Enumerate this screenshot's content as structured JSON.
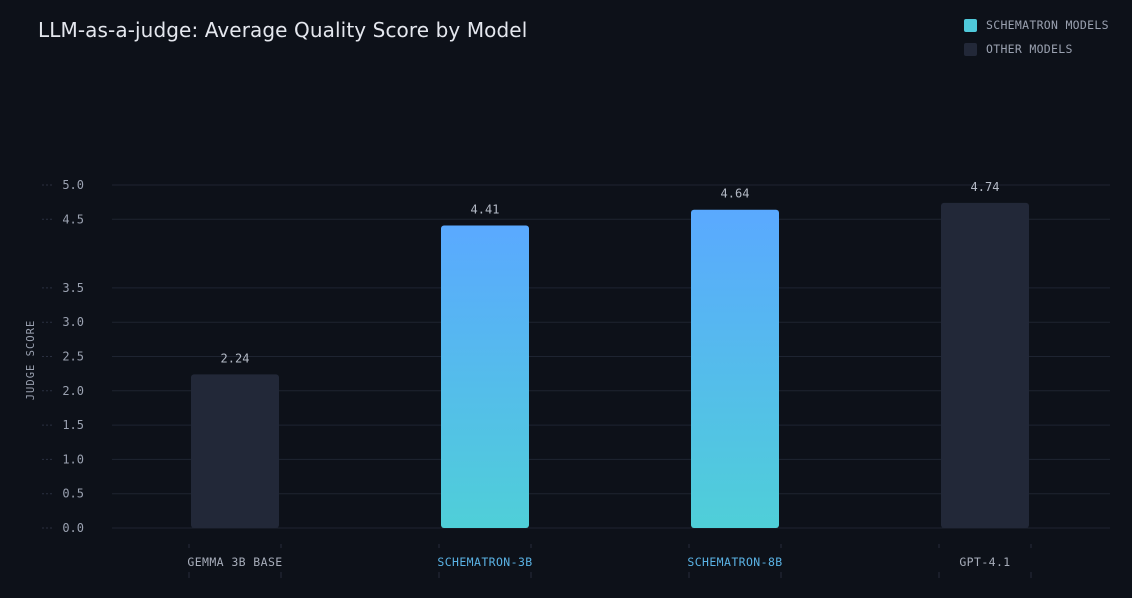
{
  "chart_data": {
    "type": "bar",
    "title": "LLM-as-a-judge: Average Quality Score by Model",
    "xlabel": "",
    "ylabel": "JUDGE SCORE",
    "categories": [
      "GEMMA 3B BASE",
      "SCHEMATRON-3B",
      "SCHEMATRON-8B",
      "GPT-4.1"
    ],
    "values": [
      2.24,
      4.41,
      4.64,
      4.74
    ],
    "value_labels": [
      "2.24",
      "4.41",
      "4.64",
      "4.74"
    ],
    "groups": [
      "other",
      "schematron",
      "schematron",
      "other"
    ],
    "y_ticks": [
      {
        "value": 0.0,
        "label": "0.0"
      },
      {
        "value": 0.5,
        "label": "0.5"
      },
      {
        "value": 1.0,
        "label": "1.0"
      },
      {
        "value": 1.5,
        "label": "1.5"
      },
      {
        "value": 2.0,
        "label": "2.0"
      },
      {
        "value": 2.5,
        "label": "2.5"
      },
      {
        "value": 3.0,
        "label": "3.0"
      },
      {
        "value": 3.5,
        "label": "3.5"
      },
      {
        "value": 4.5,
        "label": "4.5"
      },
      {
        "value": 5.0,
        "label": "5.0"
      }
    ],
    "ylim": [
      0,
      5
    ],
    "grid": true,
    "legend_position": "top-right",
    "legend": [
      {
        "label": "SCHEMATRON MODELS",
        "color": "#4fc9da",
        "group": "schematron"
      },
      {
        "label": "OTHER MODELS",
        "color": "#222838",
        "group": "other"
      }
    ],
    "colors": {
      "background": "#0d1119",
      "other_bar": "#222838",
      "schematron_top": "#5aa9ff",
      "schematron_bottom": "#4fcfd8",
      "schematron_label": "#5ab2e4",
      "other_label": "#a7adba",
      "grid": "#1e2431",
      "tick_text": "#9aa1b0"
    }
  }
}
